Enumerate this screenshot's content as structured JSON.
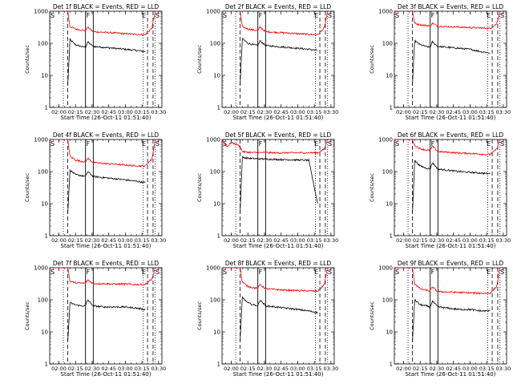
{
  "start_label": "Start Time (26-Oct-11 01:51:40)",
  "ylabel": "Counts/sec",
  "xticks": [
    "02:00",
    "02:15",
    "02:30",
    "02:45",
    "03:00",
    "03:15",
    "03:30"
  ],
  "yticks": [
    "1",
    "10",
    "100",
    "1000"
  ],
  "marker_labels": {
    "S": "S",
    "F": "F",
    "E": "E"
  },
  "colors": {
    "events": "#000000",
    "lld": "#ff0000",
    "axes": "#000000"
  },
  "chart_data": [
    {
      "type": "line",
      "title": "Det 1f BLACK = Events, RED = LLD",
      "xlabel": "Start Time (26-Oct-11 01:51:40)",
      "ylabel": "Counts/sec",
      "xlim": [
        "01:51:40",
        "03:33:00"
      ],
      "ylim": [
        1,
        1000
      ],
      "yscale": "log",
      "markers": {
        "dotted": [
          "02:04",
          "03:16",
          "03:27"
        ],
        "dashed": [
          "02:08",
          "03:20",
          "03:25"
        ],
        "solid": [
          "02:24",
          "02:31"
        ]
      },
      "series": [
        {
          "name": "Events",
          "x": [
            "02:08",
            "02:10",
            "02:15",
            "02:20",
            "02:24",
            "02:26",
            "02:31",
            "02:40",
            "02:50",
            "03:00",
            "03:10",
            "03:18"
          ],
          "y": [
            5,
            130,
            90,
            80,
            75,
            110,
            80,
            75,
            70,
            65,
            60,
            55
          ]
        },
        {
          "name": "LLD",
          "x": [
            "01:51:40",
            "02:05",
            "02:08",
            "02:10",
            "02:15",
            "02:20",
            "02:24",
            "02:26",
            "02:31",
            "02:40",
            "02:50",
            "03:00",
            "03:10",
            "03:18",
            "03:24",
            "03:27"
          ],
          "y": [
            1000,
            1000,
            1000,
            330,
            280,
            260,
            250,
            320,
            230,
            220,
            210,
            200,
            190,
            185,
            300,
            1000
          ]
        }
      ]
    },
    {
      "type": "line",
      "title": "Det 2f BLACK = Events, RED = LLD",
      "xlabel": "Start Time (26-Oct-11 01:51:40)",
      "ylabel": "Counts/sec",
      "xlim": [
        "01:51:40",
        "03:33:00"
      ],
      "ylim": [
        1,
        1000
      ],
      "yscale": "log",
      "markers": {
        "dotted": [
          "02:04",
          "03:16",
          "03:27"
        ],
        "dashed": [
          "02:08",
          "03:20",
          "03:25"
        ],
        "solid": [
          "02:24",
          "02:31"
        ]
      },
      "series": [
        {
          "name": "Events",
          "x": [
            "02:08",
            "02:10",
            "02:15",
            "02:20",
            "02:24",
            "02:26",
            "02:31",
            "02:40",
            "02:50",
            "03:00",
            "03:10",
            "03:18"
          ],
          "y": [
            5,
            140,
            100,
            90,
            85,
            120,
            85,
            80,
            75,
            70,
            65,
            60
          ]
        },
        {
          "name": "LLD",
          "x": [
            "01:51:40",
            "02:05",
            "02:08",
            "02:10",
            "02:15",
            "02:20",
            "02:24",
            "02:26",
            "02:31",
            "02:40",
            "02:50",
            "03:00",
            "03:10",
            "03:18",
            "03:24",
            "03:27"
          ],
          "y": [
            1000,
            1000,
            1000,
            330,
            280,
            260,
            250,
            320,
            230,
            220,
            210,
            200,
            190,
            185,
            300,
            1000
          ]
        }
      ]
    },
    {
      "type": "line",
      "title": "Det 3f BLACK = Events, RED = LLD",
      "xlabel": "Start Time (26-Oct-11 01:51:40)",
      "ylabel": "Counts/sec",
      "xlim": [
        "01:51:40",
        "03:33:00"
      ],
      "ylim": [
        1,
        1000
      ],
      "yscale": "log",
      "markers": {
        "dotted": [
          "02:04",
          "03:16",
          "03:27"
        ],
        "dashed": [
          "02:08",
          "03:20",
          "03:25"
        ],
        "solid": [
          "02:24",
          "02:31"
        ]
      },
      "series": [
        {
          "name": "Events",
          "x": [
            "02:08",
            "02:10",
            "02:15",
            "02:20",
            "02:24",
            "02:26",
            "02:31",
            "02:40",
            "02:50",
            "03:00",
            "03:10",
            "03:18"
          ],
          "y": [
            5,
            120,
            90,
            80,
            75,
            110,
            80,
            75,
            70,
            65,
            55,
            50
          ]
        },
        {
          "name": "LLD",
          "x": [
            "01:51:40",
            "02:05",
            "02:08",
            "02:10",
            "02:15",
            "02:20",
            "02:24",
            "02:26",
            "02:31",
            "02:40",
            "02:50",
            "03:00",
            "03:10",
            "03:18",
            "03:24",
            "03:27"
          ],
          "y": [
            1000,
            1000,
            1000,
            420,
            380,
            360,
            350,
            420,
            340,
            330,
            320,
            310,
            300,
            290,
            400,
            1000
          ]
        }
      ]
    },
    {
      "type": "line",
      "title": "Det 4f BLACK = Events, RED = LLD",
      "xlabel": "Start Time (26-Oct-11 01:51:40)",
      "ylabel": "Counts/sec",
      "xlim": [
        "01:51:40",
        "03:33:00"
      ],
      "ylim": [
        1,
        1000
      ],
      "yscale": "log",
      "markers": {
        "dotted": [
          "02:04",
          "03:16",
          "03:27"
        ],
        "dashed": [
          "02:08",
          "03:20",
          "03:25"
        ],
        "solid": [
          "02:24",
          "02:31"
        ]
      },
      "series": [
        {
          "name": "Events",
          "x": [
            "02:08",
            "02:10",
            "02:15",
            "02:20",
            "02:24",
            "02:26",
            "02:31",
            "02:40",
            "02:50",
            "03:00",
            "03:10",
            "03:18"
          ],
          "y": [
            5,
            110,
            80,
            75,
            70,
            100,
            70,
            65,
            60,
            55,
            50,
            45
          ]
        },
        {
          "name": "LLD",
          "x": [
            "01:51:40",
            "02:05",
            "02:08",
            "02:10",
            "02:15",
            "02:20",
            "02:24",
            "02:26",
            "02:31",
            "02:40",
            "02:50",
            "03:00",
            "03:10",
            "03:18",
            "03:24",
            "03:27"
          ],
          "y": [
            1000,
            1000,
            1000,
            300,
            230,
            210,
            200,
            260,
            190,
            180,
            170,
            160,
            150,
            150,
            250,
            1000
          ]
        }
      ]
    },
    {
      "type": "line",
      "title": "Det 5f BLACK = Events, RED = LLD",
      "xlabel": "Start Time (26-Oct-11 01:51:40)",
      "ylabel": "Counts/sec",
      "xlim": [
        "01:51:40",
        "03:33:00"
      ],
      "ylim": [
        1,
        1000
      ],
      "yscale": "log",
      "markers": {
        "dotted": [
          "02:04",
          "03:16",
          "03:27"
        ],
        "dashed": [
          "02:08",
          "03:20",
          "03:25"
        ],
        "solid": [
          "02:24",
          "02:31"
        ]
      },
      "series": [
        {
          "name": "Events",
          "x": [
            "02:08",
            "02:10",
            "02:15",
            "02:20",
            "02:24",
            "02:26",
            "02:31",
            "02:40",
            "02:50",
            "03:00",
            "03:10",
            "03:18"
          ],
          "y": [
            5,
            280,
            260,
            255,
            250,
            250,
            245,
            240,
            235,
            230,
            225,
            10
          ]
        },
        {
          "name": "LLD",
          "x": [
            "01:51:40",
            "01:56",
            "02:00",
            "02:05",
            "02:08",
            "02:10",
            "02:15",
            "02:20",
            "02:24",
            "02:26",
            "02:31",
            "02:40",
            "02:50",
            "03:00",
            "03:10",
            "03:18",
            "03:24",
            "03:27"
          ],
          "y": [
            1000,
            600,
            800,
            700,
            600,
            420,
            400,
            390,
            390,
            390,
            390,
            385,
            385,
            385,
            385,
            385,
            500,
            1000
          ]
        }
      ]
    },
    {
      "type": "line",
      "title": "Det 6f BLACK = Events, RED = LLD",
      "xlabel": "Start Time (26-Oct-11 01:51:40)",
      "ylabel": "Counts/sec",
      "xlim": [
        "01:51:40",
        "03:33:00"
      ],
      "ylim": [
        1,
        1000
      ],
      "yscale": "log",
      "markers": {
        "dotted": [
          "02:04",
          "03:16",
          "03:27"
        ],
        "dashed": [
          "02:08",
          "03:20",
          "03:25"
        ],
        "solid": [
          "02:24",
          "02:31"
        ]
      },
      "series": [
        {
          "name": "Events",
          "x": [
            "02:08",
            "02:10",
            "02:15",
            "02:20",
            "02:24",
            "02:26",
            "02:31",
            "02:40",
            "02:50",
            "03:00",
            "03:10",
            "03:18"
          ],
          "y": [
            5,
            220,
            150,
            130,
            120,
            190,
            120,
            110,
            100,
            95,
            90,
            85
          ]
        },
        {
          "name": "LLD",
          "x": [
            "01:51:40",
            "02:05",
            "02:08",
            "02:10",
            "02:15",
            "02:20",
            "02:24",
            "02:26",
            "02:31",
            "02:40",
            "02:50",
            "03:00",
            "03:10",
            "03:18",
            "03:24",
            "03:27"
          ],
          "y": [
            1000,
            1000,
            1000,
            650,
            520,
            470,
            450,
            620,
            420,
            400,
            380,
            370,
            350,
            340,
            500,
            1000
          ]
        }
      ]
    },
    {
      "type": "line",
      "title": "Det 7f BLACK = Events, RED = LLD",
      "xlabel": "Start Time (26-Oct-11 01:51:40)",
      "ylabel": "Counts/sec",
      "xlim": [
        "01:51:40",
        "03:33:00"
      ],
      "ylim": [
        1,
        1000
      ],
      "yscale": "log",
      "markers": {
        "dotted": [
          "02:04",
          "03:16",
          "03:27"
        ],
        "dashed": [
          "02:08",
          "03:20",
          "03:25"
        ],
        "solid": [
          "02:24",
          "02:31"
        ]
      },
      "series": [
        {
          "name": "Events",
          "x": [
            "02:08",
            "02:10",
            "02:15",
            "02:20",
            "02:24",
            "02:26",
            "02:31",
            "02:40",
            "02:50",
            "03:00",
            "03:10",
            "03:18"
          ],
          "y": [
            5,
            80,
            70,
            65,
            65,
            100,
            65,
            60,
            60,
            60,
            55,
            50
          ]
        },
        {
          "name": "LLD",
          "x": [
            "01:51:40",
            "02:05",
            "02:08",
            "02:10",
            "02:15",
            "02:20",
            "02:24",
            "02:26",
            "02:31",
            "02:40",
            "02:50",
            "03:00",
            "03:10",
            "03:18",
            "03:24",
            "03:27"
          ],
          "y": [
            1000,
            1000,
            1000,
            380,
            340,
            330,
            330,
            420,
            320,
            320,
            310,
            310,
            300,
            300,
            450,
            1000
          ]
        }
      ]
    },
    {
      "type": "line",
      "title": "Det 8f BLACK = Events, RED = LLD",
      "xlabel": "Start Time (26-Oct-11 01:51:40)",
      "ylabel": "Counts/sec",
      "xlim": [
        "01:51:40",
        "03:33:00"
      ],
      "ylim": [
        1,
        1000
      ],
      "yscale": "log",
      "markers": {
        "dotted": [
          "02:04",
          "03:16",
          "03:27"
        ],
        "dashed": [
          "02:08",
          "03:20",
          "03:25"
        ],
        "solid": [
          "02:24",
          "02:31"
        ]
      },
      "series": [
        {
          "name": "Events",
          "x": [
            "02:08",
            "02:10",
            "02:15",
            "02:20",
            "02:24",
            "02:26",
            "02:31",
            "02:40",
            "02:50",
            "03:00",
            "03:10",
            "03:18"
          ],
          "y": [
            5,
            120,
            80,
            70,
            65,
            100,
            65,
            60,
            55,
            50,
            45,
            40
          ]
        },
        {
          "name": "LLD",
          "x": [
            "01:51:40",
            "02:05",
            "02:08",
            "02:10",
            "02:15",
            "02:20",
            "02:24",
            "02:26",
            "02:31",
            "02:40",
            "02:50",
            "03:00",
            "03:10",
            "03:18",
            "03:24",
            "03:27"
          ],
          "y": [
            1000,
            1000,
            1000,
            360,
            260,
            240,
            230,
            300,
            220,
            210,
            200,
            195,
            190,
            185,
            300,
            1000
          ]
        }
      ]
    },
    {
      "type": "line",
      "title": "Det 9f BLACK = Events, RED = LLD",
      "xlabel": "Start Time (26-Oct-11 01:51:40)",
      "ylabel": "Counts/sec",
      "xlim": [
        "01:51:40",
        "03:33:00"
      ],
      "ylim": [
        1,
        1000
      ],
      "yscale": "log",
      "markers": {
        "dotted": [
          "02:04",
          "03:16",
          "03:27"
        ],
        "dashed": [
          "02:08",
          "03:20",
          "03:25"
        ],
        "solid": [
          "02:24",
          "02:31"
        ]
      },
      "series": [
        {
          "name": "Events",
          "x": [
            "02:08",
            "02:10",
            "02:15",
            "02:20",
            "02:24",
            "02:26",
            "02:31",
            "02:40",
            "02:50",
            "03:00",
            "03:10",
            "03:18"
          ],
          "y": [
            5,
            100,
            70,
            65,
            60,
            90,
            60,
            55,
            50,
            50,
            45,
            45
          ]
        },
        {
          "name": "LLD",
          "x": [
            "01:51:40",
            "02:05",
            "02:08",
            "02:10",
            "02:15",
            "02:20",
            "02:24",
            "02:26",
            "02:31",
            "02:40",
            "02:50",
            "03:00",
            "03:10",
            "03:18",
            "03:24",
            "03:27"
          ],
          "y": [
            1000,
            1000,
            1000,
            320,
            220,
            200,
            190,
            250,
            180,
            175,
            170,
            165,
            160,
            160,
            260,
            1000
          ]
        }
      ]
    }
  ]
}
